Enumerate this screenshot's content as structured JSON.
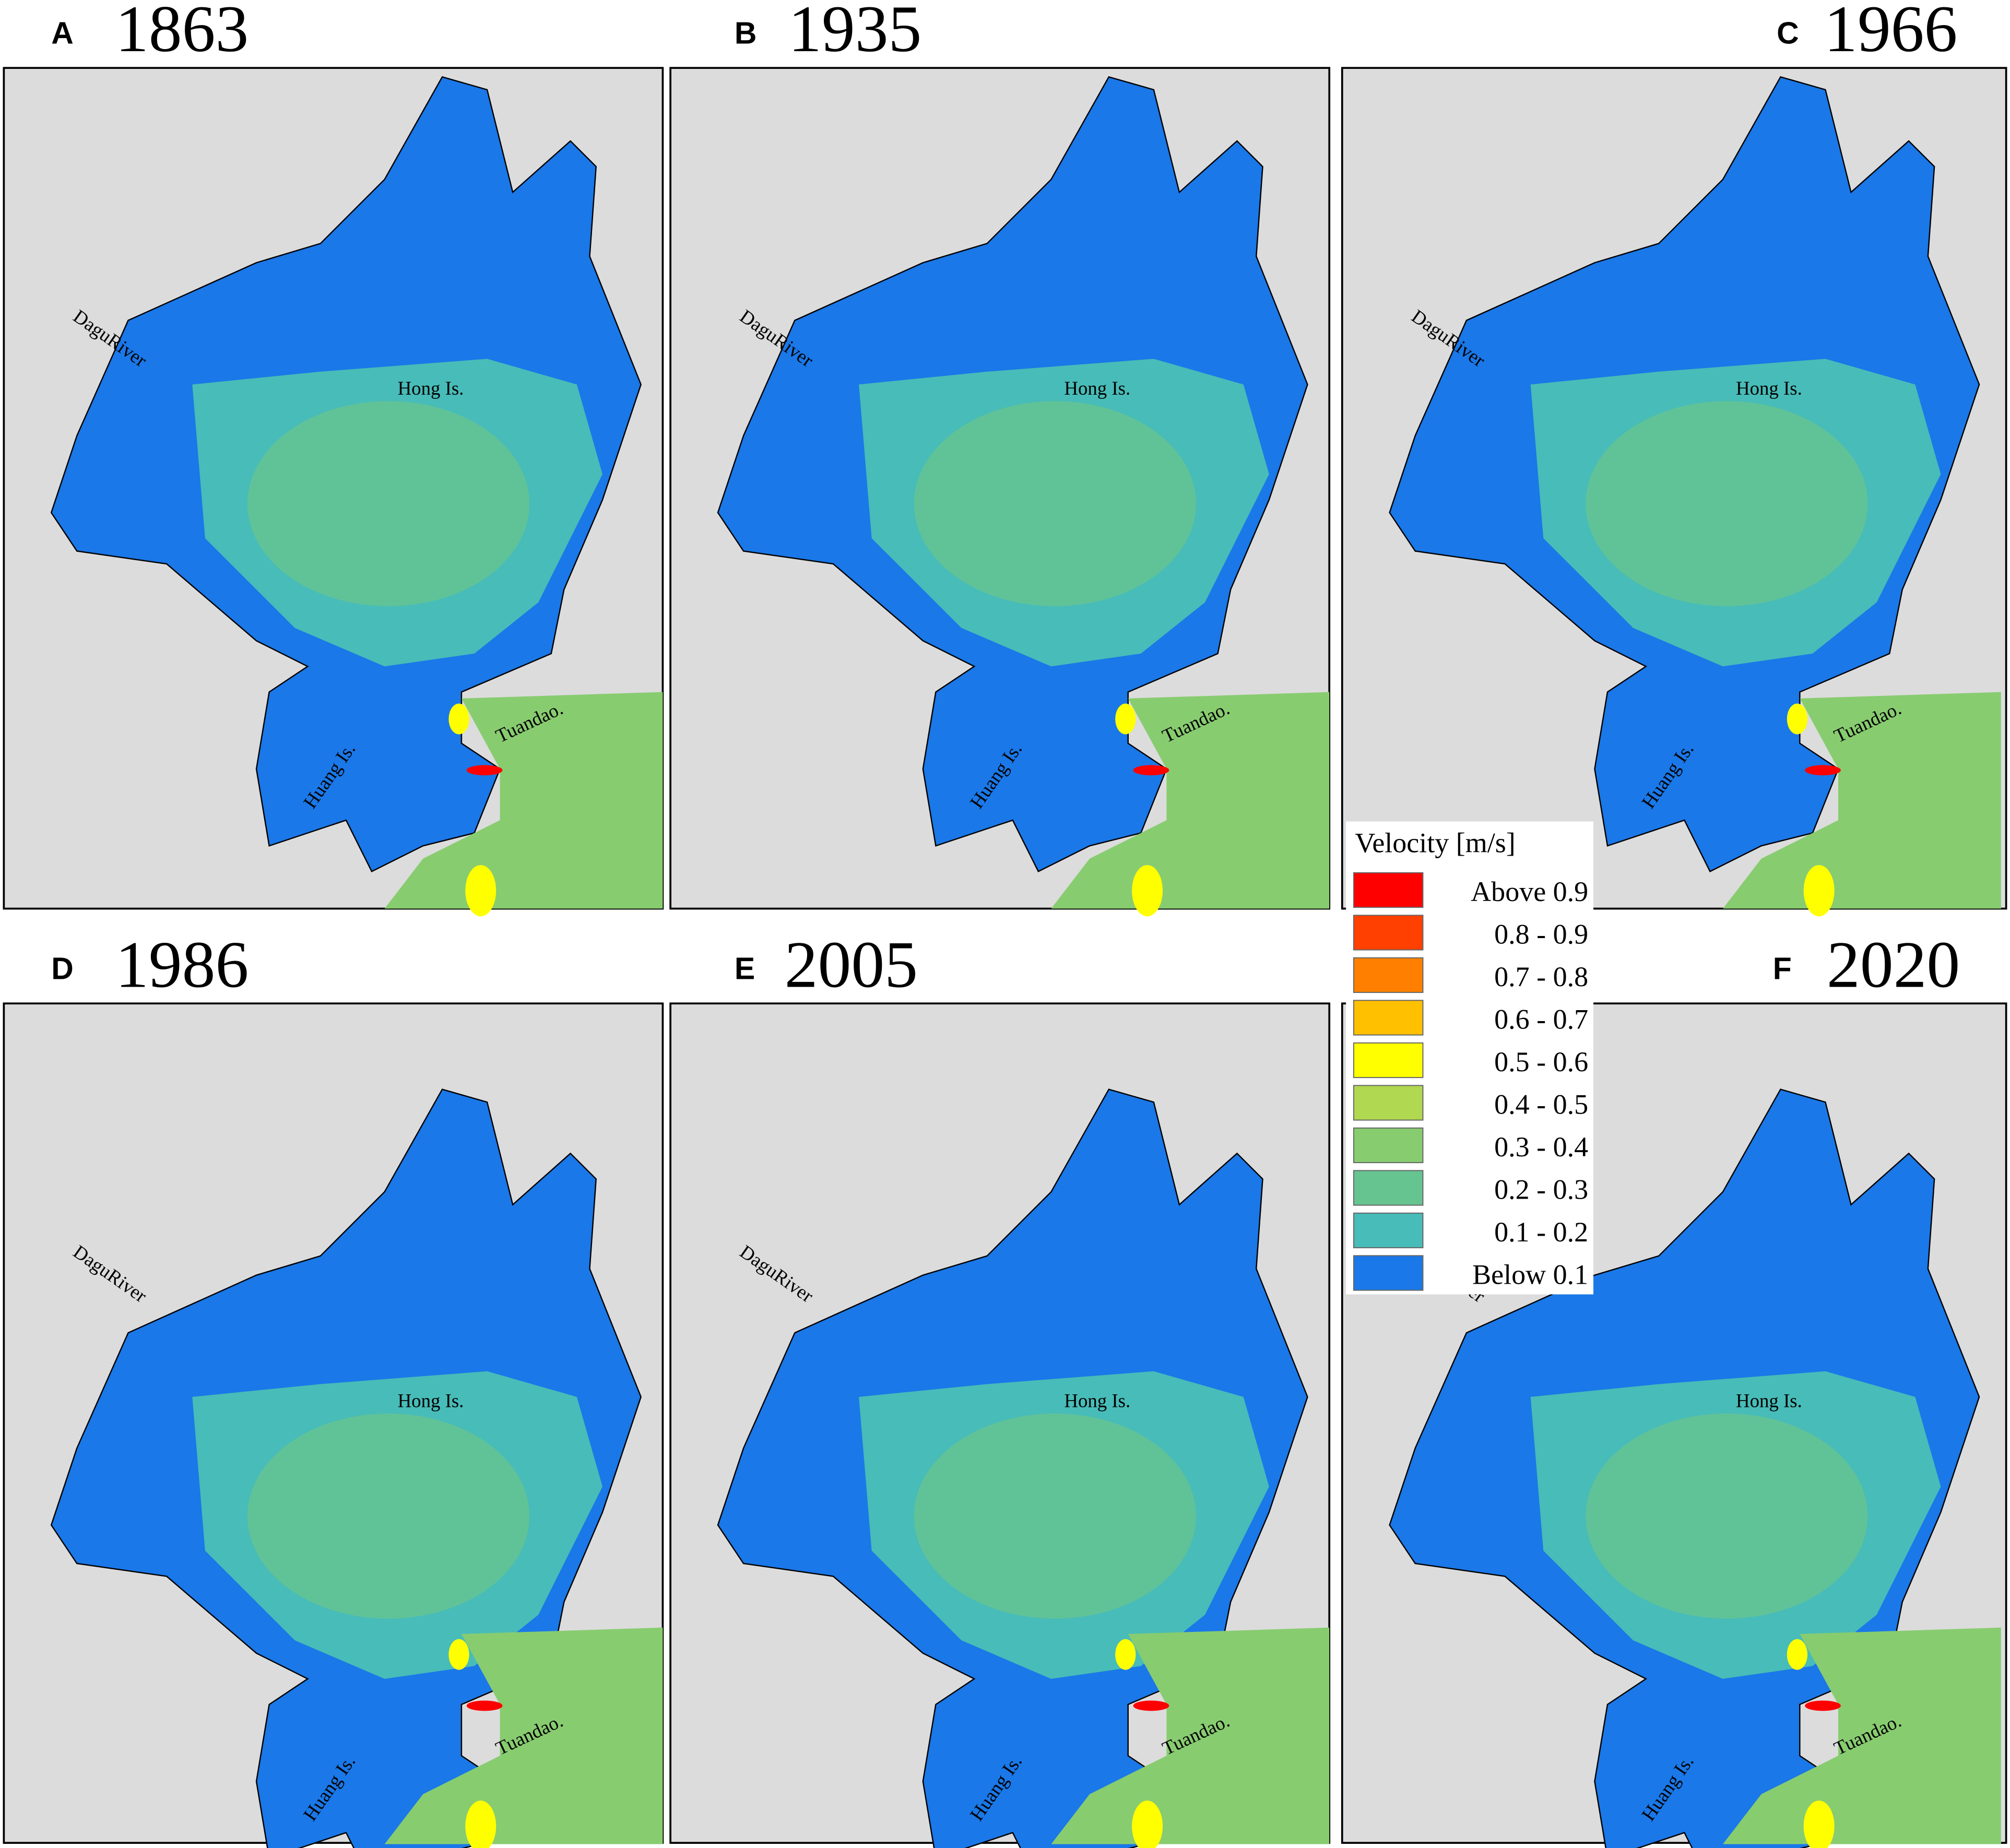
{
  "panels": [
    {
      "letter": "A",
      "year": "1863",
      "labels": [
        "DaguRiver",
        "Hong Is.",
        "Huang Is.",
        "Tuandao."
      ]
    },
    {
      "letter": "B",
      "year": "1935",
      "labels": [
        "DaguRiver",
        "Hong Is.",
        "Huang Is.",
        "Tuandao."
      ]
    },
    {
      "letter": "C",
      "year": "1966",
      "labels": [
        "DaguRiver",
        "Hong Is.",
        "Huang Is.",
        "Tuandao."
      ]
    },
    {
      "letter": "D",
      "year": "1986",
      "labels": [
        "DaguRiver",
        "Hong Is.",
        "Huang Is.",
        "Tuandao."
      ]
    },
    {
      "letter": "E",
      "year": "2005",
      "labels": [
        "DaguRiver",
        "Hong Is.",
        "Huang Is.",
        "Tuandao."
      ]
    },
    {
      "letter": "F",
      "year": "2020",
      "labels": [
        "DaguRiver",
        "Hong Is.",
        "Huang Is.",
        "Tuandao."
      ]
    }
  ],
  "legend": {
    "title": "Velocity [m/s]",
    "items": [
      {
        "label": "Above 0.9",
        "color": "#ff0000"
      },
      {
        "label": "0.8 - 0.9",
        "color": "#ff4000"
      },
      {
        "label": "0.7 - 0.8",
        "color": "#ff8000"
      },
      {
        "label": "0.6 - 0.7",
        "color": "#ffc000"
      },
      {
        "label": "0.5 - 0.6",
        "color": "#ffff00"
      },
      {
        "label": "0.4 - 0.5",
        "color": "#b0d850"
      },
      {
        "label": "0.3 - 0.4",
        "color": "#88cc70"
      },
      {
        "label": "0.2 - 0.3",
        "color": "#66c490"
      },
      {
        "label": "0.1 - 0.2",
        "color": "#48bcb8"
      },
      {
        "label": "Below 0.1",
        "color": "#1a78e8"
      }
    ]
  }
}
